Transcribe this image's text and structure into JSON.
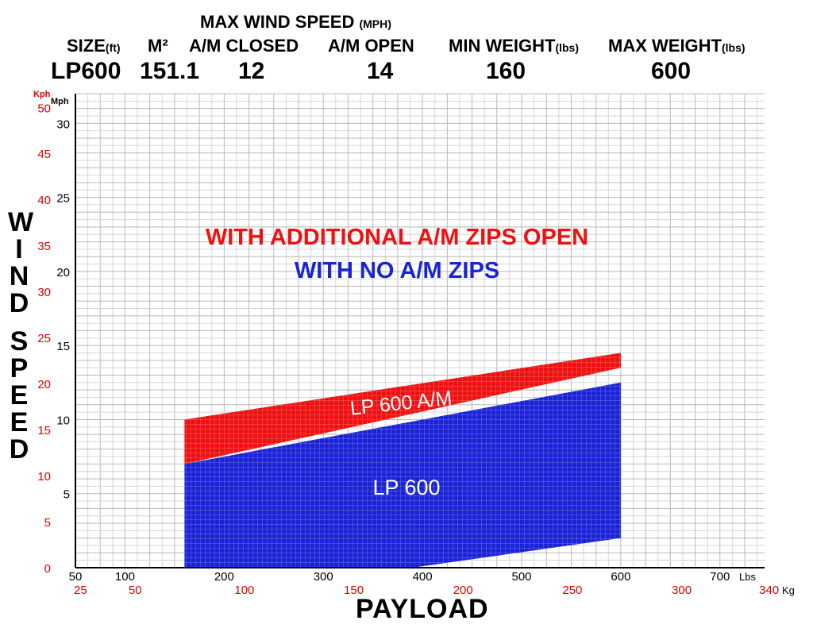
{
  "header": {
    "title": "MAX WIND SPEED",
    "title_unit": "(MPH)",
    "columns": [
      {
        "label": "SIZE",
        "unit": "(ft)",
        "value": "LP600"
      },
      {
        "label": "M²",
        "unit": "",
        "value": "151.1"
      },
      {
        "label": "A/M CLOSED",
        "unit": "",
        "value": "12"
      },
      {
        "label": "A/M OPEN",
        "unit": "",
        "value": "14"
      },
      {
        "label": "MIN WEIGHT",
        "unit": "(lbs)",
        "value": "160"
      },
      {
        "label": "MAX WEIGHT",
        "unit": "(lbs)",
        "value": "600"
      }
    ]
  },
  "chart_data": {
    "type": "area",
    "xlabel": "PAYLOAD",
    "ylabel": "WIND SPEED",
    "x_unit_primary": "Lbs",
    "x_unit_secondary": "Kg",
    "y_unit_primary": "Mph",
    "y_unit_secondary": "Kph",
    "xlim": [
      50,
      745
    ],
    "ylim": [
      0,
      32
    ],
    "x_ticks_lbs": [
      50,
      100,
      200,
      300,
      400,
      500,
      600,
      700
    ],
    "x_ticks_kg": [
      25,
      50,
      100,
      150,
      200,
      250,
      300,
      340
    ],
    "y_ticks_mph": [
      5,
      10,
      15,
      20,
      25,
      30
    ],
    "y_ticks_kph": [
      0,
      5,
      10,
      15,
      20,
      25,
      30,
      35,
      40,
      45,
      50
    ],
    "grid": true,
    "series": [
      {
        "name": "LP 600 A/M",
        "color": "#ee1111",
        "points_lower": [
          [
            160,
            7
          ],
          [
            600,
            13.5
          ]
        ],
        "points_upper": [
          [
            160,
            10
          ],
          [
            600,
            14.5
          ]
        ]
      },
      {
        "name": "LP 600",
        "color": "#1a23d6",
        "points_lower": [
          [
            160,
            0
          ],
          [
            390,
            0
          ],
          [
            600,
            2
          ]
        ],
        "points_upper": [
          [
            160,
            7
          ],
          [
            600,
            12.5
          ]
        ]
      }
    ],
    "annotations": [
      {
        "text": "WITH ADDITIONAL A/M ZIPS OPEN",
        "color": "#ee1111"
      },
      {
        "text": "WITH NO A/M ZIPS",
        "color": "#1a23d6"
      }
    ]
  }
}
